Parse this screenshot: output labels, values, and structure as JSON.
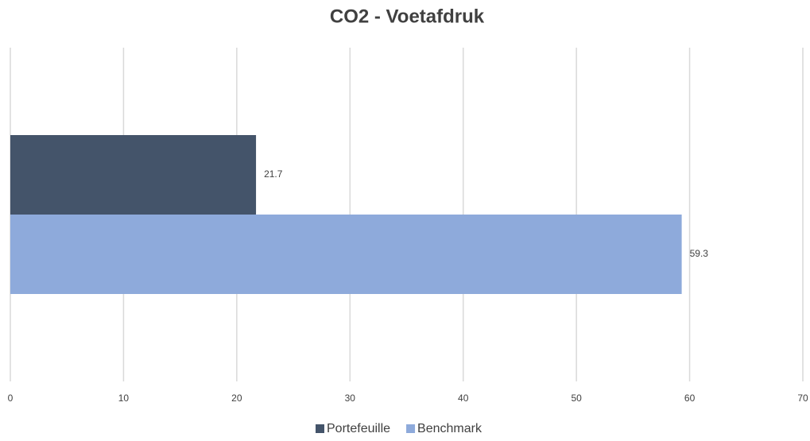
{
  "chart_data": {
    "type": "bar",
    "horizontal": true,
    "title": "CO2 - Voetafdruk",
    "categories": [
      null
    ],
    "series": [
      {
        "name": "Portefeuille",
        "color": "#44546a",
        "values": [
          21.7
        ]
      },
      {
        "name": "Benchmark",
        "color": "#8eaadb",
        "values": [
          59.3
        ]
      }
    ],
    "xlim": [
      0,
      70
    ],
    "xticks": [
      0,
      10,
      20,
      30,
      40,
      50,
      60,
      70
    ],
    "grid": true,
    "legend": "bottom"
  }
}
